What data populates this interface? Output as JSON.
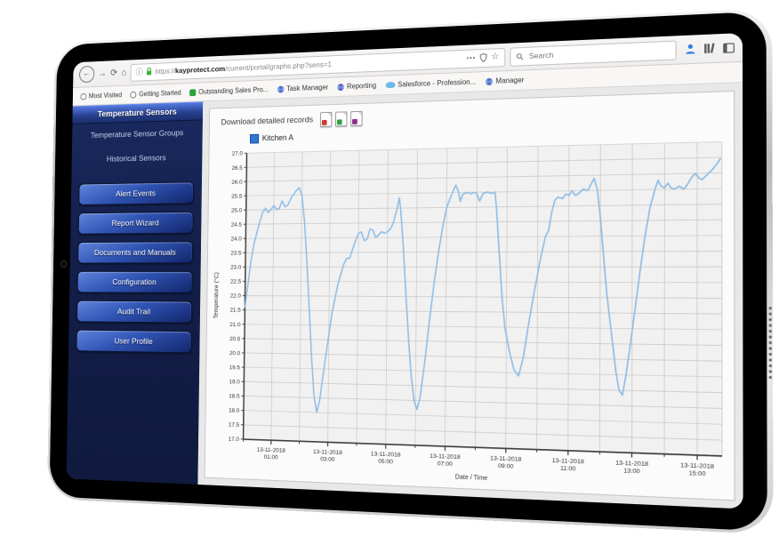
{
  "browser": {
    "nav_icons": {
      "back": "←",
      "forward": "→",
      "reload": "⟳",
      "home": "⌂",
      "info": "ⓘ",
      "page_actions": "•••",
      "star": "☆"
    },
    "url": {
      "scheme": "https://",
      "domain": "kayprotect.com",
      "path": "/current/portal/graphs.php?sens=1"
    },
    "search": {
      "placeholder": "Search"
    },
    "toolbar_right_icons": [
      "person-icon",
      "library-icon",
      "sidebar-toggle-icon"
    ],
    "bookmarks": [
      {
        "label": "Most Visited",
        "shape": "circle",
        "color": "#7a7a7a"
      },
      {
        "label": "Getting Started",
        "shape": "circle",
        "color": "#7a7a7a"
      },
      {
        "label": "Outstanding Sales Pro...",
        "shape": "square",
        "color": "#2ba23c"
      },
      {
        "label": "Task Manager",
        "shape": "pinwheel",
        "color": "#4f5bc4"
      },
      {
        "label": "Reporting",
        "shape": "pinwheel",
        "color": "#5a46c8"
      },
      {
        "label": "Salesforce - Profession...",
        "shape": "cloud",
        "color": "#6db9ea"
      },
      {
        "label": "Manager",
        "shape": "pinwheel",
        "color": "#4f5bc4"
      }
    ]
  },
  "sidebar": {
    "selected_item": "Temperature Sensors",
    "links": [
      "Temperature Sensor Groups",
      "Historical Sensors"
    ],
    "buttons": [
      "Alert Events",
      "Report Wizard",
      "Documents and Manuals",
      "Configuration",
      "Audit Trail",
      "User Profile"
    ]
  },
  "main": {
    "download_label": "Download detailed records",
    "export_icons": [
      {
        "name": "export-doc-red-icon",
        "color": "#cf3a2e"
      },
      {
        "name": "export-doc-green-icon",
        "color": "#2fa33a"
      },
      {
        "name": "export-doc-purple-icon",
        "color": "#8e2a8e"
      }
    ],
    "legend": {
      "label": "Kitchen A",
      "color": "#2e75d4"
    }
  },
  "chart_data": {
    "type": "line",
    "title": "",
    "xlabel": "Date / Time",
    "ylabel": "Temperature (°C)",
    "ylim": [
      17.0,
      27.0
    ],
    "ytick_step": 0.5,
    "xlim": [
      0,
      15.75
    ],
    "x_unit": "hours elapsed on 13-11-2018 from 00:00",
    "grid": true,
    "minor_x_tick_every_hours": 1,
    "xticks": [
      {
        "t": 1,
        "date": "13-11-2018",
        "time": "01:00"
      },
      {
        "t": 3,
        "date": "13-11-2018",
        "time": "03:00"
      },
      {
        "t": 5,
        "date": "13-11-2018",
        "time": "05:00"
      },
      {
        "t": 7,
        "date": "13-11-2018",
        "time": "07:00"
      },
      {
        "t": 9,
        "date": "13-11-2018",
        "time": "09:00"
      },
      {
        "t": 11,
        "date": "13-11-2018",
        "time": "11:00"
      },
      {
        "t": 13,
        "date": "13-11-2018",
        "time": "13:00"
      },
      {
        "t": 15,
        "date": "13-11-2018",
        "time": "15:00"
      }
    ],
    "series": [
      {
        "name": "Kitchen A",
        "color": "#8fbde6",
        "points": [
          [
            0,
            21.6
          ],
          [
            0.1,
            22.4
          ],
          [
            0.2,
            23.2
          ],
          [
            0.3,
            23.8
          ],
          [
            0.45,
            24.4
          ],
          [
            0.6,
            24.9
          ],
          [
            0.7,
            25.05
          ],
          [
            0.8,
            24.9
          ],
          [
            0.9,
            25.0
          ],
          [
            1.0,
            25.15
          ],
          [
            1.1,
            25.0
          ],
          [
            1.2,
            25.05
          ],
          [
            1.3,
            25.3
          ],
          [
            1.4,
            25.1
          ],
          [
            1.5,
            25.15
          ],
          [
            1.65,
            25.45
          ],
          [
            1.8,
            25.65
          ],
          [
            1.9,
            25.75
          ],
          [
            2.0,
            25.5
          ],
          [
            2.1,
            24.6
          ],
          [
            2.2,
            23.2
          ],
          [
            2.3,
            21.6
          ],
          [
            2.4,
            19.9
          ],
          [
            2.5,
            18.6
          ],
          [
            2.6,
            18.0
          ],
          [
            2.7,
            18.4
          ],
          [
            2.8,
            19.2
          ],
          [
            2.95,
            20.3
          ],
          [
            3.1,
            21.4
          ],
          [
            3.3,
            22.4
          ],
          [
            3.5,
            23.1
          ],
          [
            3.6,
            23.3
          ],
          [
            3.7,
            23.3
          ],
          [
            3.8,
            23.6
          ],
          [
            3.9,
            23.9
          ],
          [
            4.0,
            24.15
          ],
          [
            4.1,
            24.2
          ],
          [
            4.2,
            23.9
          ],
          [
            4.3,
            23.95
          ],
          [
            4.4,
            24.3
          ],
          [
            4.5,
            24.25
          ],
          [
            4.6,
            24.0
          ],
          [
            4.7,
            24.1
          ],
          [
            4.8,
            24.2
          ],
          [
            4.9,
            24.15
          ],
          [
            5.0,
            24.2
          ],
          [
            5.1,
            24.3
          ],
          [
            5.2,
            24.5
          ],
          [
            5.3,
            24.9
          ],
          [
            5.4,
            25.35
          ],
          [
            5.45,
            24.9
          ],
          [
            5.55,
            23.6
          ],
          [
            5.65,
            22.0
          ],
          [
            5.75,
            20.5
          ],
          [
            5.85,
            19.3
          ],
          [
            5.95,
            18.5
          ],
          [
            6.05,
            18.2
          ],
          [
            6.15,
            18.6
          ],
          [
            6.3,
            19.8
          ],
          [
            6.45,
            21.2
          ],
          [
            6.6,
            22.5
          ],
          [
            6.75,
            23.6
          ],
          [
            6.9,
            24.5
          ],
          [
            7.0,
            25.0
          ],
          [
            7.15,
            25.4
          ],
          [
            7.3,
            25.75
          ],
          [
            7.4,
            25.5
          ],
          [
            7.45,
            25.2
          ],
          [
            7.55,
            25.45
          ],
          [
            7.7,
            25.5
          ],
          [
            7.8,
            25.45
          ],
          [
            7.9,
            25.5
          ],
          [
            8.0,
            25.45
          ],
          [
            8.1,
            25.2
          ],
          [
            8.2,
            25.45
          ],
          [
            8.35,
            25.5
          ],
          [
            8.5,
            25.45
          ],
          [
            8.6,
            25.5
          ],
          [
            8.65,
            25.0
          ],
          [
            8.75,
            23.5
          ],
          [
            8.85,
            22.0
          ],
          [
            8.95,
            21.0
          ],
          [
            9.1,
            20.2
          ],
          [
            9.25,
            19.6
          ],
          [
            9.4,
            19.4
          ],
          [
            9.55,
            20.0
          ],
          [
            9.7,
            21.0
          ],
          [
            9.9,
            22.2
          ],
          [
            10.1,
            23.3
          ],
          [
            10.25,
            24.0
          ],
          [
            10.35,
            24.2
          ],
          [
            10.45,
            24.8
          ],
          [
            10.55,
            25.2
          ],
          [
            10.65,
            25.3
          ],
          [
            10.8,
            25.25
          ],
          [
            10.9,
            25.4
          ],
          [
            11.0,
            25.35
          ],
          [
            11.1,
            25.5
          ],
          [
            11.2,
            25.35
          ],
          [
            11.3,
            25.4
          ],
          [
            11.45,
            25.55
          ],
          [
            11.6,
            25.5
          ],
          [
            11.7,
            25.7
          ],
          [
            11.8,
            25.9
          ],
          [
            11.9,
            25.55
          ],
          [
            12.0,
            24.6
          ],
          [
            12.1,
            23.4
          ],
          [
            12.2,
            22.2
          ],
          [
            12.35,
            20.9
          ],
          [
            12.5,
            19.6
          ],
          [
            12.6,
            19.0
          ],
          [
            12.7,
            18.85
          ],
          [
            12.8,
            19.4
          ],
          [
            12.95,
            20.5
          ],
          [
            13.1,
            21.7
          ],
          [
            13.25,
            22.9
          ],
          [
            13.4,
            24.0
          ],
          [
            13.55,
            24.9
          ],
          [
            13.7,
            25.5
          ],
          [
            13.8,
            25.8
          ],
          [
            13.9,
            25.6
          ],
          [
            14.0,
            25.55
          ],
          [
            14.1,
            25.7
          ],
          [
            14.2,
            25.55
          ],
          [
            14.3,
            25.5
          ],
          [
            14.45,
            25.6
          ],
          [
            14.6,
            25.5
          ],
          [
            14.7,
            25.65
          ],
          [
            14.85,
            25.9
          ],
          [
            14.95,
            26.0
          ],
          [
            15.05,
            25.85
          ],
          [
            15.15,
            25.8
          ],
          [
            15.3,
            25.95
          ],
          [
            15.45,
            26.1
          ],
          [
            15.6,
            26.3
          ],
          [
            15.7,
            26.45
          ]
        ]
      }
    ]
  }
}
